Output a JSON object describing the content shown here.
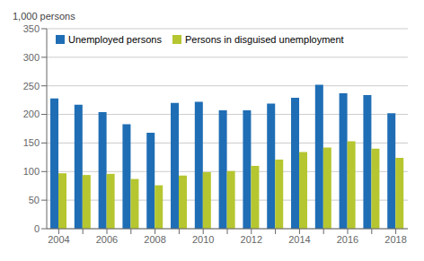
{
  "chart_data": {
    "type": "bar",
    "ylabel": "1,000 persons",
    "categories": [
      "2004",
      null,
      "2006",
      null,
      "2008",
      null,
      "2010",
      null,
      "2012",
      null,
      "2014",
      null,
      "2016",
      null,
      "2018"
    ],
    "series": [
      {
        "name": "Unemployed persons",
        "color": "#1f6eb5",
        "values": [
          228,
          217,
          204,
          183,
          168,
          220,
          222,
          207,
          207,
          219,
          229,
          252,
          237,
          234,
          202
        ]
      },
      {
        "name": "Persons in disguised unemployment",
        "color": "#b5c630",
        "values": [
          97,
          94,
          96,
          87,
          76,
          93,
          99,
          101,
          110,
          121,
          134,
          142,
          153,
          140,
          124
        ]
      }
    ],
    "ylim": [
      0,
      350
    ],
    "yticks": [
      0,
      50,
      100,
      150,
      200,
      250,
      300,
      350
    ],
    "grid": true,
    "legend": "upper left"
  }
}
